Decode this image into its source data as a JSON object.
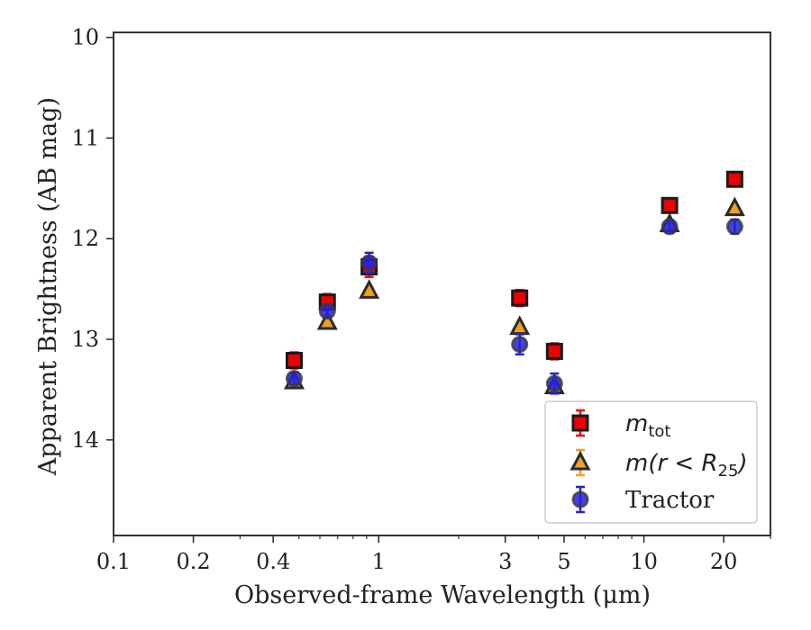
{
  "chart_data": {
    "type": "scatter",
    "xscale": "log",
    "yinverted": true,
    "xlim": [
      0.1,
      30
    ],
    "ylim": [
      14.95,
      9.95
    ],
    "xlabel": "Observed-frame Wavelength (μm)",
    "ylabel": "Apparent Brightness (AB mag)",
    "xticks": [
      {
        "value": 0.1,
        "label": "0.1"
      },
      {
        "value": 0.2,
        "label": "0.2"
      },
      {
        "value": 0.4,
        "label": "0.4"
      },
      {
        "value": 1,
        "label": "1"
      },
      {
        "value": 3,
        "label": "3"
      },
      {
        "value": 5,
        "label": "5"
      },
      {
        "value": 10,
        "label": "10"
      },
      {
        "value": 20,
        "label": "20"
      }
    ],
    "yticks": [
      {
        "value": 10,
        "label": "10"
      },
      {
        "value": 11,
        "label": "11"
      },
      {
        "value": 12,
        "label": "12"
      },
      {
        "value": 13,
        "label": "13"
      },
      {
        "value": 14,
        "label": "14"
      }
    ],
    "legend_position": "lower right",
    "series": [
      {
        "name": "m_tot",
        "marker": "square",
        "color": "#ee0000",
        "x": [
          0.48,
          0.64,
          0.92,
          3.4,
          4.6,
          12.5,
          22
        ],
        "y": [
          13.21,
          12.63,
          12.28,
          12.59,
          13.12,
          11.67,
          11.41
        ],
        "yerr": [
          0.08,
          0.08,
          0.1,
          0.08,
          0.08,
          0.07,
          0.07
        ]
      },
      {
        "name": "m(r < R25)",
        "marker": "triangle",
        "color": "#f0a020",
        "x": [
          0.48,
          0.64,
          0.92,
          3.4,
          4.6,
          12.5,
          22
        ],
        "y": [
          13.42,
          12.83,
          12.52,
          12.88,
          13.47,
          11.86,
          11.7
        ],
        "yerr": [
          0.03,
          0.03,
          0.03,
          0.03,
          0.03,
          0.03,
          0.03
        ]
      },
      {
        "name": "Tractor",
        "marker": "circle",
        "color": "#2222dd",
        "x": [
          0.48,
          0.64,
          0.92,
          3.4,
          4.6,
          12.5,
          22
        ],
        "y": [
          13.39,
          12.72,
          12.24,
          13.05,
          13.44,
          11.88,
          11.88
        ],
        "yerr": [
          0.06,
          0.06,
          0.1,
          0.1,
          0.1,
          0.06,
          0.07
        ]
      }
    ],
    "legend": {
      "entries": [
        {
          "base": "m",
          "sub": "tot"
        },
        {
          "base": "m(r < R",
          "sub": "25",
          "tail": ")"
        },
        {
          "base": "Tractor"
        }
      ]
    }
  }
}
